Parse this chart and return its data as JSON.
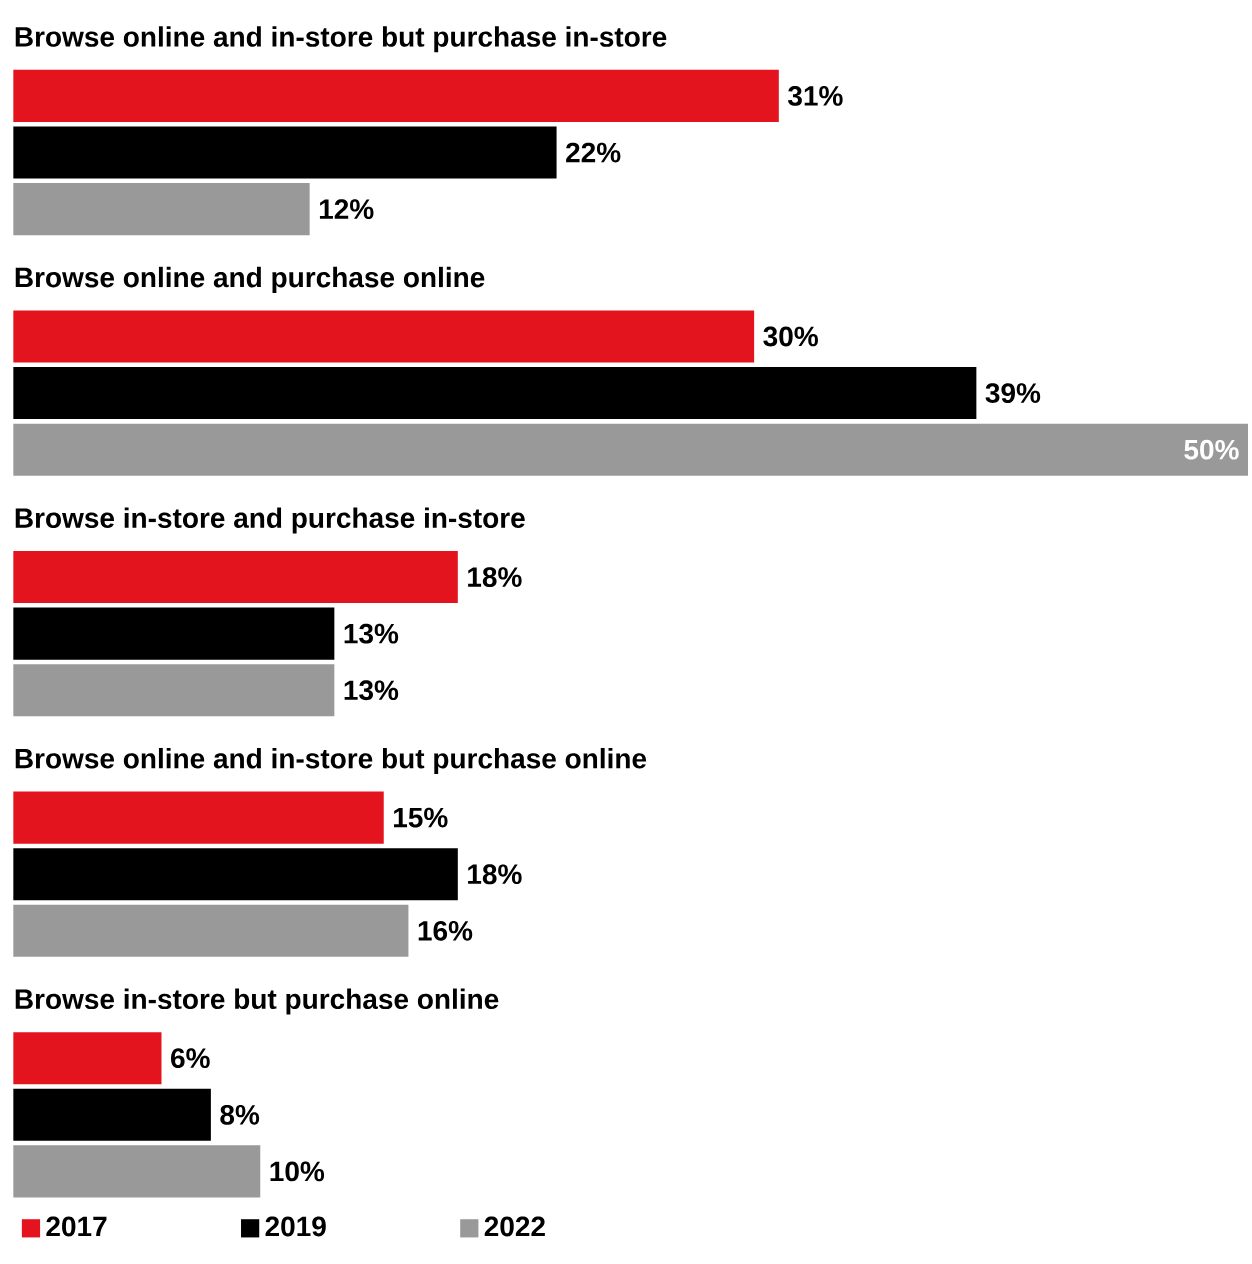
{
  "chart_data": {
    "type": "bar",
    "orientation": "horizontal",
    "categories": [
      "Browse online and in-store but purchase in-store",
      "Browse online and purchase online",
      "Browse in-store and purchase in-store",
      "Browse online and in-store but purchase online",
      "Browse in-store but purchase online"
    ],
    "series": [
      {
        "name": "2017",
        "color": "#e3141d",
        "values": [
          31,
          30,
          18,
          15,
          6
        ],
        "value_labels": [
          "31%",
          "30%",
          "18%",
          "15%",
          "6%"
        ]
      },
      {
        "name": "2019",
        "color": "#000000",
        "values": [
          22,
          39,
          13,
          18,
          8
        ],
        "value_labels": [
          "22%",
          "39%",
          "13%",
          "18%",
          "8%"
        ]
      },
      {
        "name": "2022",
        "color": "#999999",
        "values": [
          12,
          50,
          13,
          16,
          10
        ],
        "value_labels": [
          "12%",
          "50%",
          "13%",
          "16%",
          "10%"
        ]
      }
    ],
    "xlim": [
      0,
      50
    ],
    "legend": "bottom left"
  }
}
